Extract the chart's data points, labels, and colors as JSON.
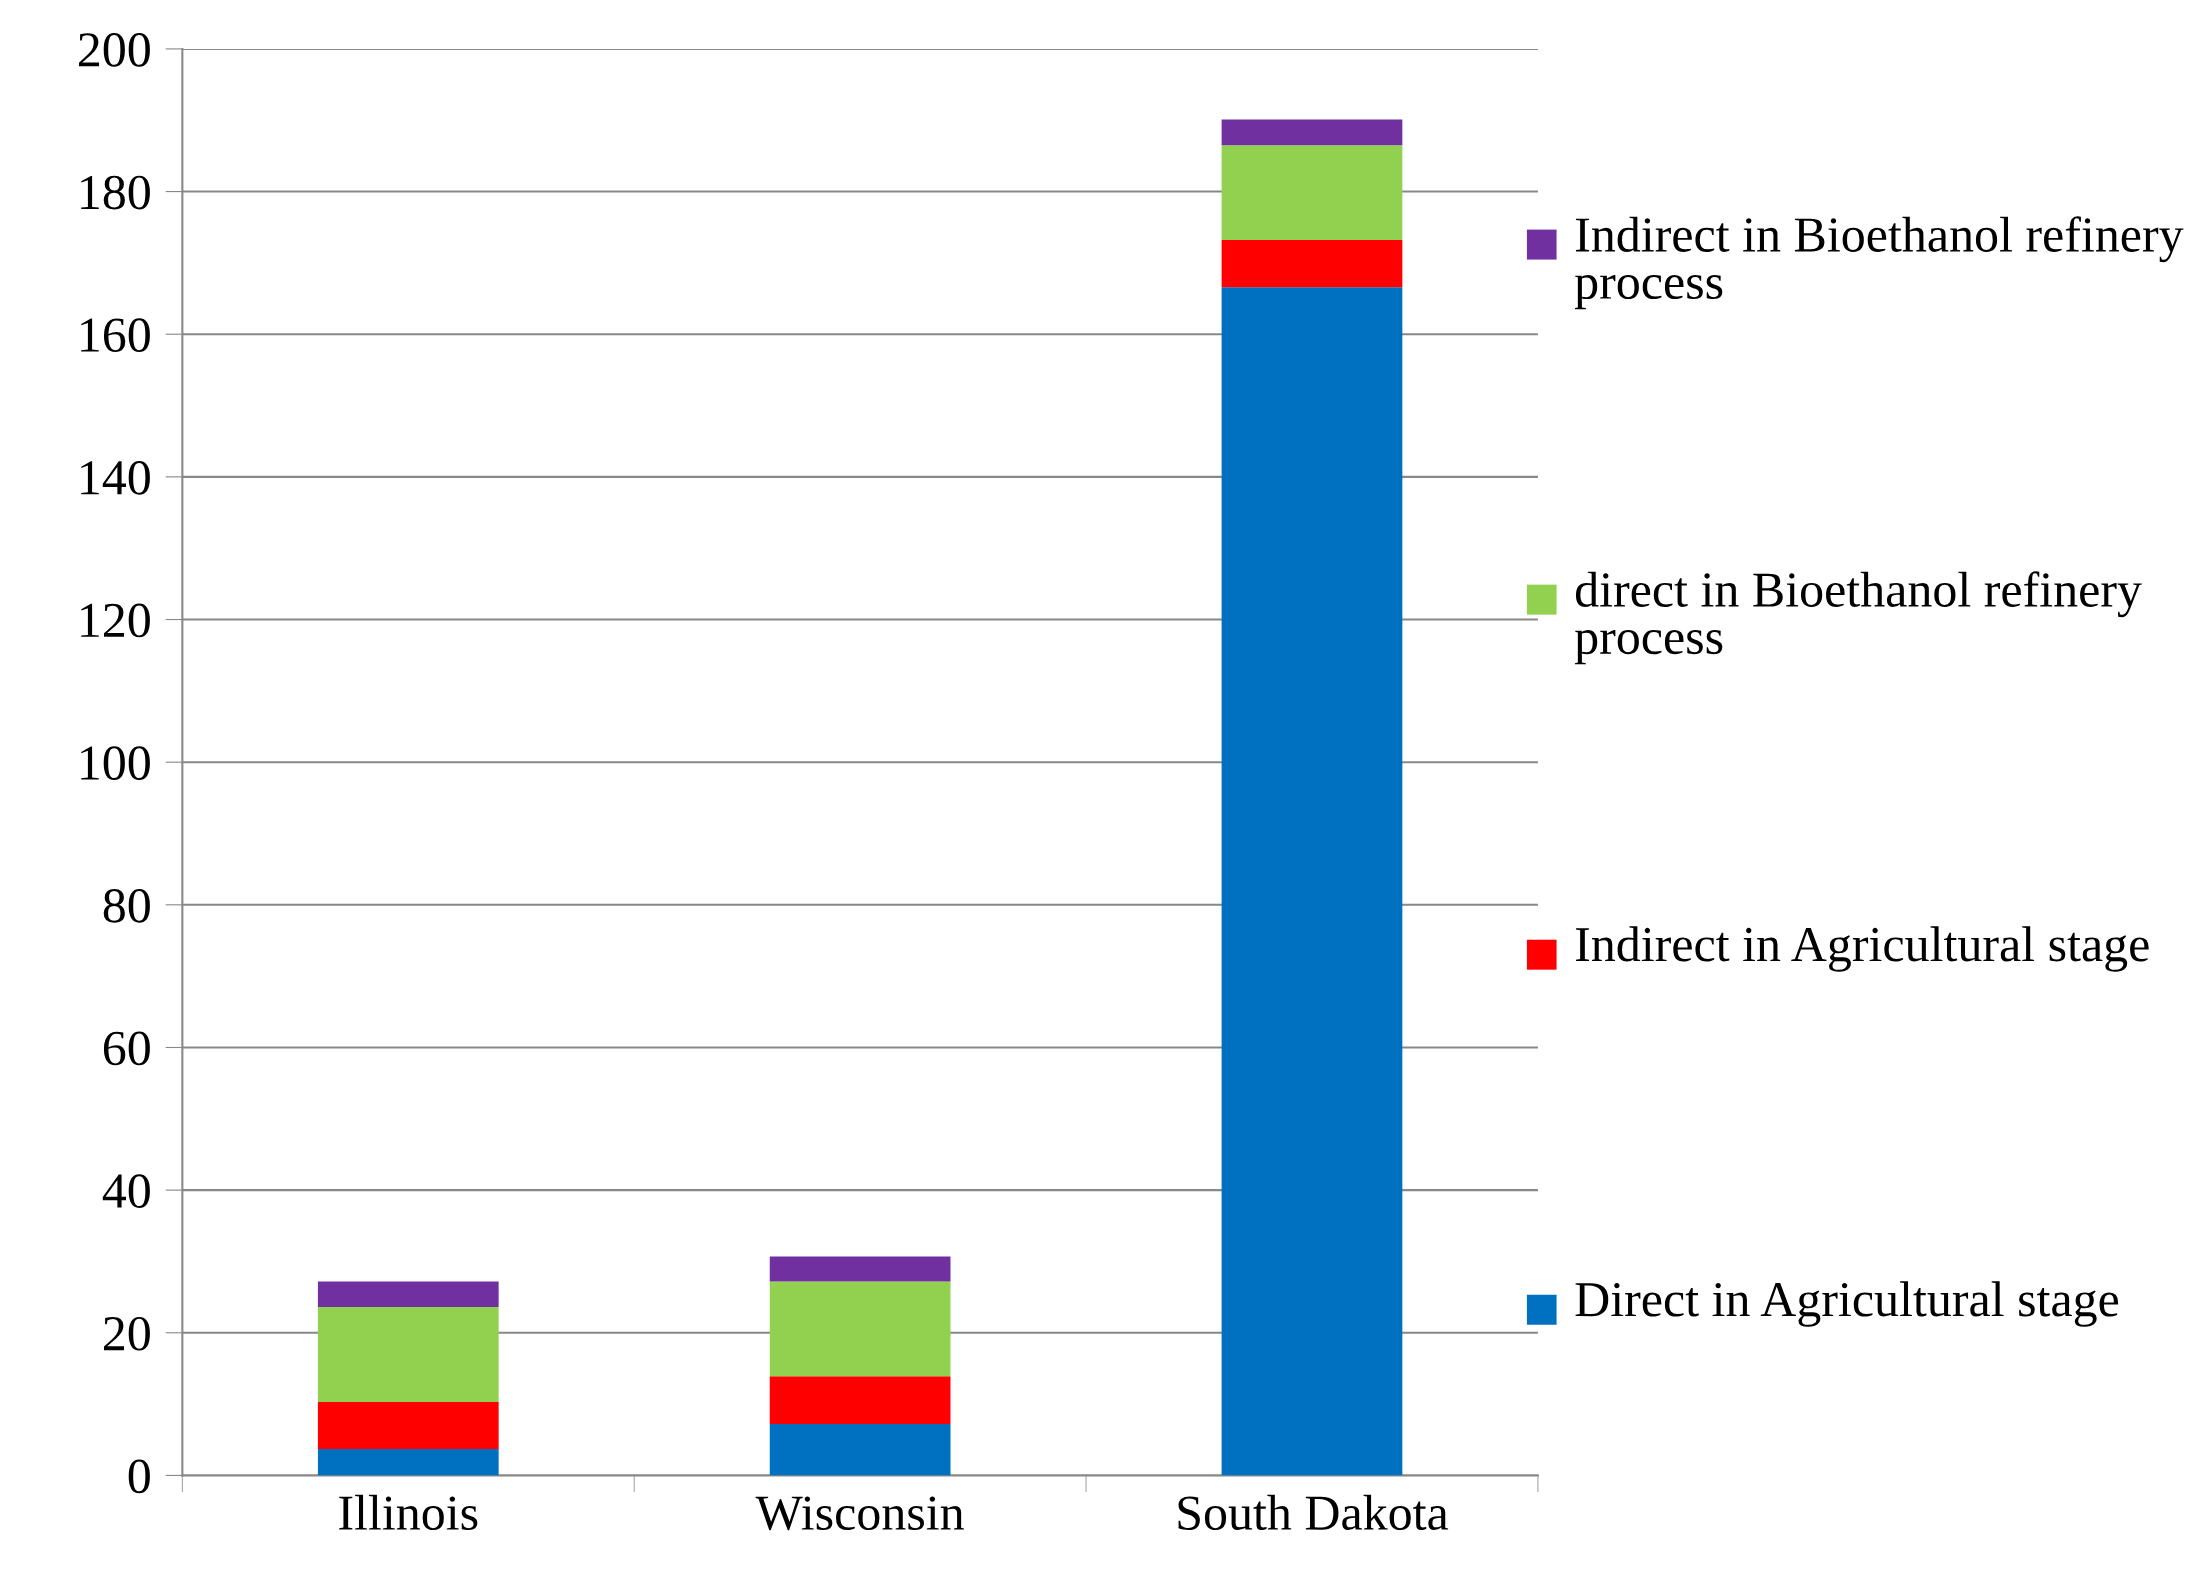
{
  "chart_data": {
    "type": "bar",
    "stacked": true,
    "categories": [
      "Illinois",
      "Wisconsin",
      "South Dakota"
    ],
    "series": [
      {
        "name": "Direct in Agricultural stage",
        "color": "#0070c0",
        "values": [
          3.7,
          7.2,
          166.6
        ]
      },
      {
        "name": "Indirect in Agricultural stage",
        "color": "#ff0000",
        "values": [
          6.6,
          6.7,
          6.6
        ]
      },
      {
        "name": "direct in Bioethanol refinery process",
        "color": "#92d050",
        "values": [
          13.3,
          13.3,
          13.3
        ]
      },
      {
        "name": "Indirect in Bioethanol refinery process",
        "color": "#7030a0",
        "values": [
          3.6,
          3.5,
          3.6
        ]
      }
    ],
    "ylim": [
      0,
      200
    ],
    "yticks": [
      0,
      20,
      40,
      60,
      80,
      100,
      120,
      140,
      160,
      180,
      200
    ],
    "grid": "y",
    "legend": "right"
  }
}
